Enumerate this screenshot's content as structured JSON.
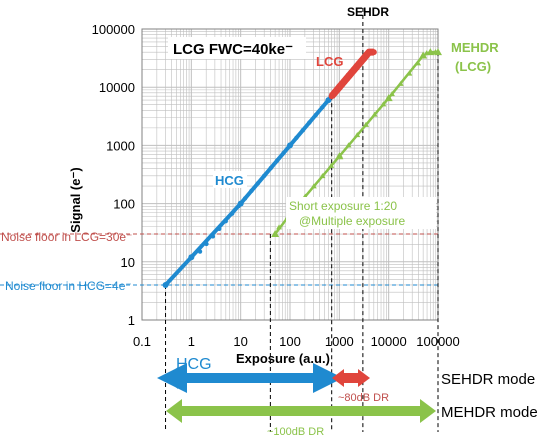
{
  "chart_data": {
    "type": "line",
    "x_scale": "log",
    "y_scale": "log",
    "xlim": [
      0.1,
      100000
    ],
    "ylim": [
      1,
      100000
    ],
    "xlabel": "Exposure (a.u.)",
    "ylabel": "Signal (e⁻)",
    "x_ticks": [
      "0.1",
      "1",
      "10",
      "100",
      "1000",
      "10000",
      "100000"
    ],
    "y_ticks": [
      "1",
      "10",
      "100",
      "1000",
      "10000",
      "100000"
    ],
    "grid": true,
    "series": [
      {
        "name": "HCG",
        "color": "#1f8ad0",
        "points": [
          [
            0.3,
            4
          ],
          [
            1,
            12
          ],
          [
            10,
            100
          ],
          [
            100,
            1000
          ],
          [
            600,
            6000
          ],
          [
            700,
            7000
          ]
        ]
      },
      {
        "name": "LCG",
        "color": "#e0453c",
        "points": [
          [
            700,
            7000
          ],
          [
            1000,
            10000
          ],
          [
            3000,
            30000
          ],
          [
            4000,
            40000
          ],
          [
            5000,
            40000
          ]
        ]
      },
      {
        "name": "MEHDR (LCG)",
        "color": "#8bc34a",
        "points": [
          [
            50,
            30
          ],
          [
            100,
            65
          ],
          [
            1000,
            650
          ],
          [
            10000,
            6500
          ],
          [
            50000,
            35000
          ],
          [
            70000,
            40000
          ],
          [
            100000,
            40000
          ]
        ]
      }
    ],
    "noise_floors": [
      {
        "label": "Noise floor in LCG=30e⁻",
        "value": 30,
        "color": "#c0504d"
      },
      {
        "label": "Noise floor in HCG=4e⁻",
        "value": 4,
        "color": "#1f8ad0"
      }
    ],
    "annotations": {
      "fwc": "LCG FWC=40ke⁻",
      "sehdr_top": "SEHDR",
      "lcg_label": "LCG",
      "hcg_label": "HCG",
      "mehdr_label_1": "MEHDR",
      "mehdr_label_2": "(LCG)",
      "short_exposure_1": "Short exposure  1:20",
      "short_exposure_2": "@Multiple exposure"
    },
    "dr_bars": {
      "hcg_text": "HCG",
      "sehdr_mode": "SEHDR mode",
      "sehdr_dr": "~80dB DR",
      "mehdr_mode": "MEHDR mode",
      "mehdr_dr": "~100dB DR"
    },
    "colors": {
      "blue": "#1f8ad0",
      "red": "#e0453c",
      "green": "#8bc34a",
      "grid": "#bfbfbf"
    }
  }
}
